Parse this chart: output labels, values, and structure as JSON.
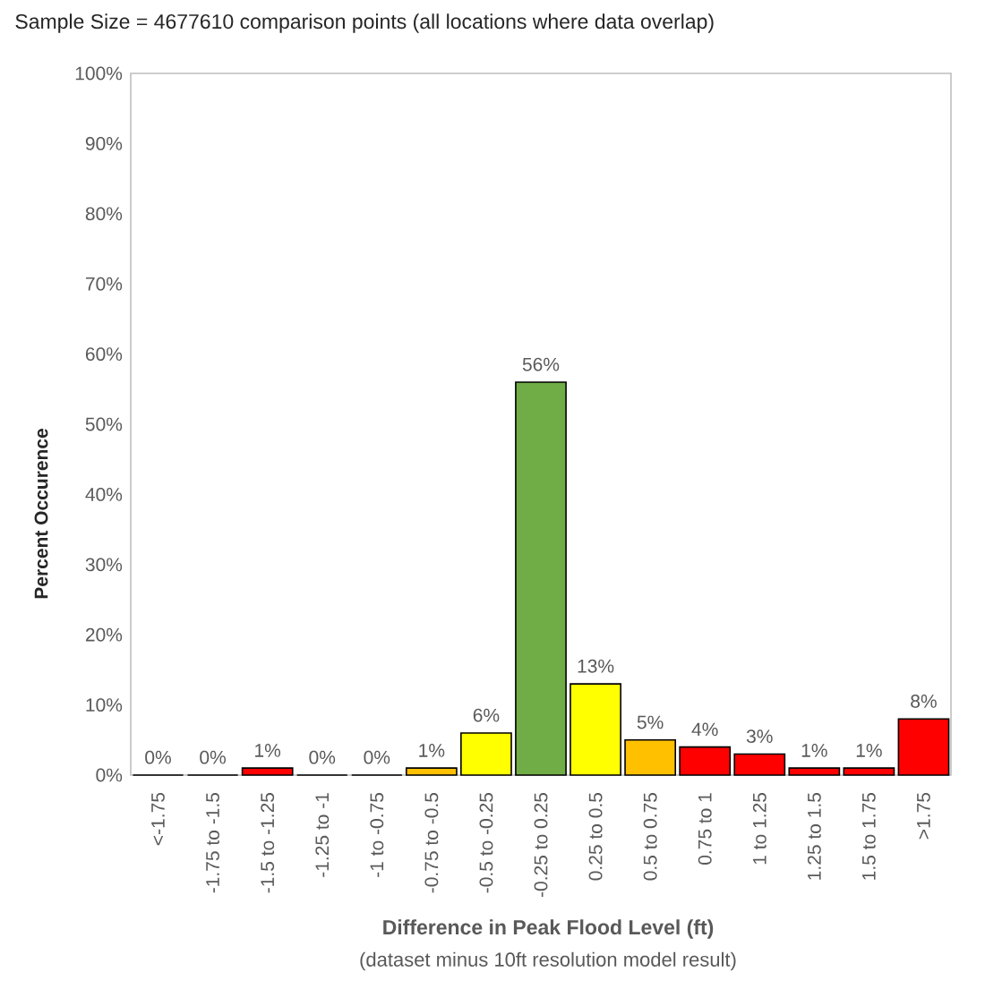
{
  "chart_data": {
    "type": "bar",
    "title": "Sample Size = 4677610 comparison points (all locations where data overlap)",
    "xlabel": "Difference in Peak Flood Level (ft)",
    "ylabel": "Percent Occurence",
    "annotations": [
      "(dataset minus 10ft resolution model result)"
    ],
    "categories": [
      "<-1.75",
      "-1.75 to -1.5",
      "-1.5 to -1.25",
      "-1.25 to -1",
      "-1 to -0.75",
      "-0.75 to -0.5",
      "-0.5 to -0.25",
      "-0.25 to 0.25",
      "0.25 to 0.5",
      "0.5 to 0.75",
      "0.75 to 1",
      "1 to 1.25",
      "1.25 to 1.5",
      "1.5 to 1.75",
      ">1.75"
    ],
    "values": [
      0,
      0,
      1,
      0,
      0,
      1,
      6,
      56,
      13,
      5,
      4,
      3,
      1,
      1,
      8
    ],
    "value_labels": [
      "0%",
      "0%",
      "1%",
      "0%",
      "0%",
      "1%",
      "6%",
      "56%",
      "13%",
      "5%",
      "4%",
      "3%",
      "1%",
      "1%",
      "8%"
    ],
    "colors": [
      "#ff0000",
      "#ff0000",
      "#ff0000",
      "#ff0000",
      "#ff0000",
      "#ffc000",
      "#ffff00",
      "#70ad47",
      "#ffff00",
      "#ffc000",
      "#ff0000",
      "#ff0000",
      "#ff0000",
      "#ff0000",
      "#ff0000"
    ],
    "ylim": [
      0,
      100
    ],
    "yticks": [
      {
        "value": 0,
        "label": "0%"
      },
      {
        "value": 10,
        "label": "10%"
      },
      {
        "value": 20,
        "label": "20%"
      },
      {
        "value": 30,
        "label": "30%"
      },
      {
        "value": 40,
        "label": "40%"
      },
      {
        "value": 50,
        "label": "50%"
      },
      {
        "value": 60,
        "label": "60%"
      },
      {
        "value": 70,
        "label": "70%"
      },
      {
        "value": 80,
        "label": "80%"
      },
      {
        "value": 90,
        "label": "90%"
      },
      {
        "value": 100,
        "label": "100%"
      }
    ]
  }
}
